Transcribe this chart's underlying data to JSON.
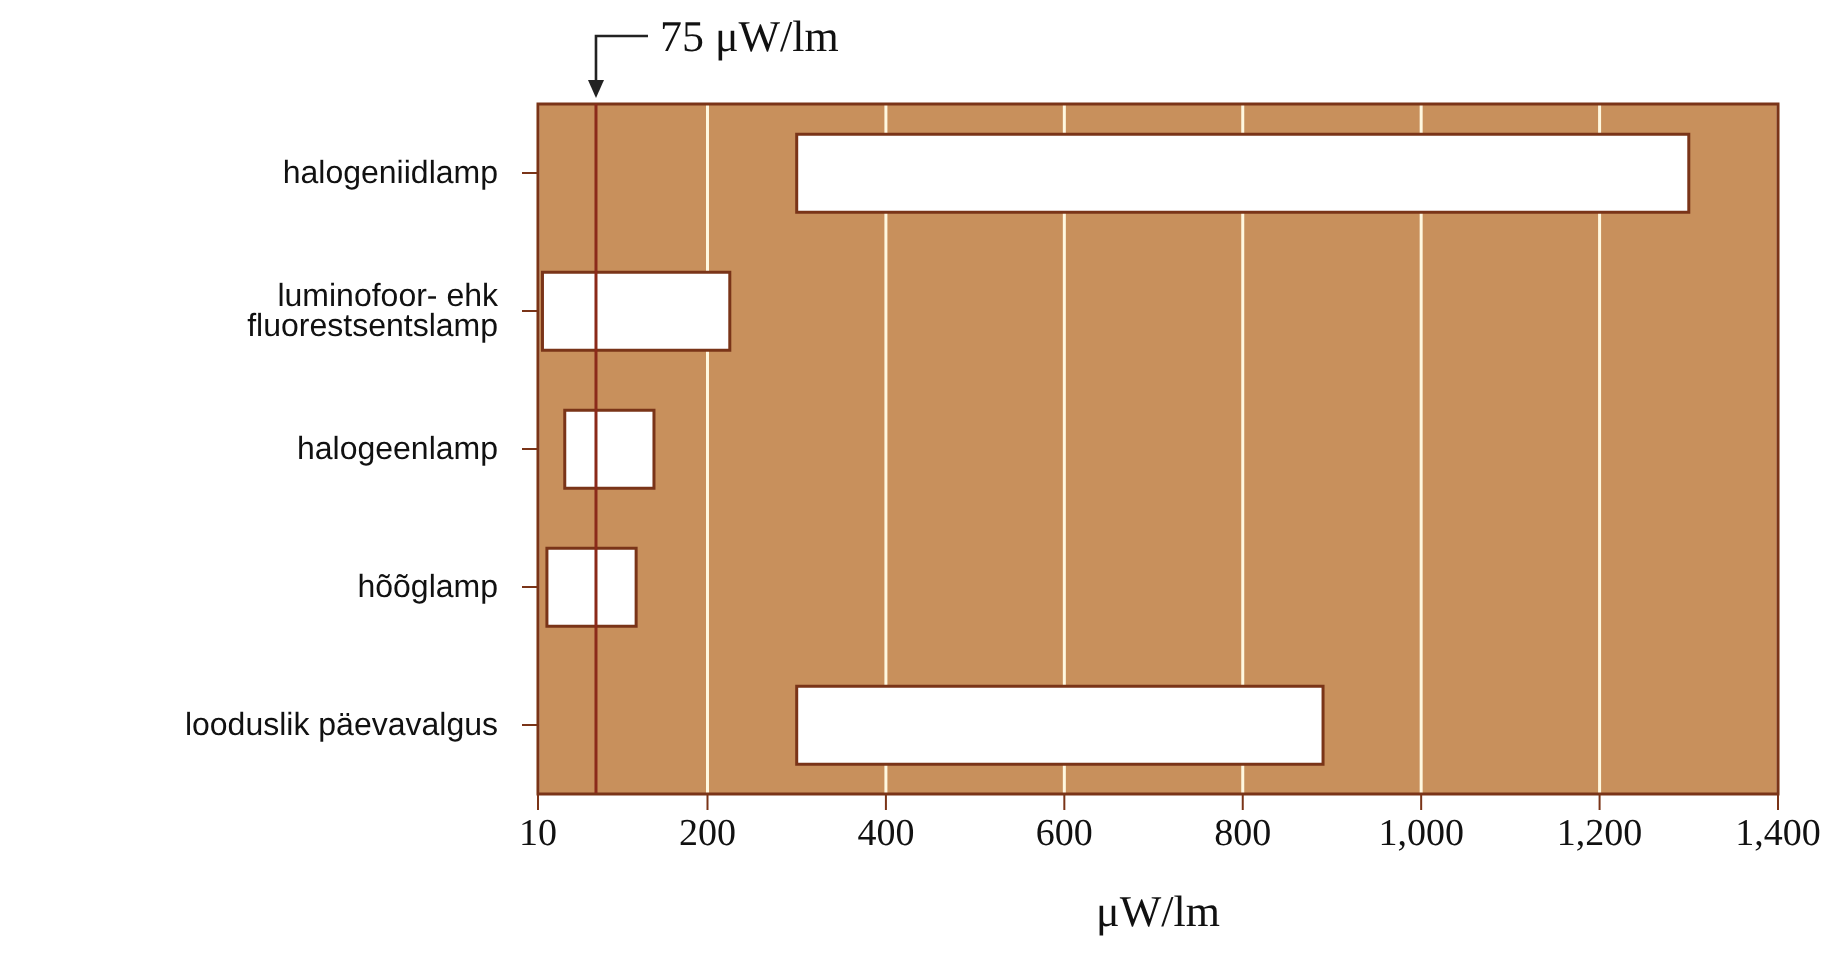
{
  "chart_data": {
    "type": "bar",
    "orientation": "horizontal",
    "xlabel": "μW/lm",
    "categories": [
      "halogeniidlamp",
      "luminofoor- ehk fluorestsentslamp",
      "halogeenlamp",
      "hõõglamp",
      "looduslik päevavalgus"
    ],
    "base": [
      300,
      15,
      40,
      20,
      300
    ],
    "values": [
      1000,
      210,
      100,
      100,
      590
    ],
    "color": "#ffffff",
    "xlim": [
      10,
      1400
    ],
    "xticks": [
      10,
      {
        "value": 200,
        "label": "200"
      },
      {
        "value": 400,
        "label": "400"
      },
      {
        "value": 600,
        "label": "600"
      },
      {
        "value": 800,
        "label": "800"
      },
      {
        "value": 1000,
        "label": "1,000"
      },
      {
        "value": 1200,
        "label": "1,200"
      },
      {
        "value": 1400,
        "label": "1,400"
      }
    ],
    "grid": "x",
    "ref_lines": [
      {
        "axis": "x",
        "value": 75,
        "label": "75 μW/lm",
        "color": "#8b2a1a"
      }
    ]
  }
}
